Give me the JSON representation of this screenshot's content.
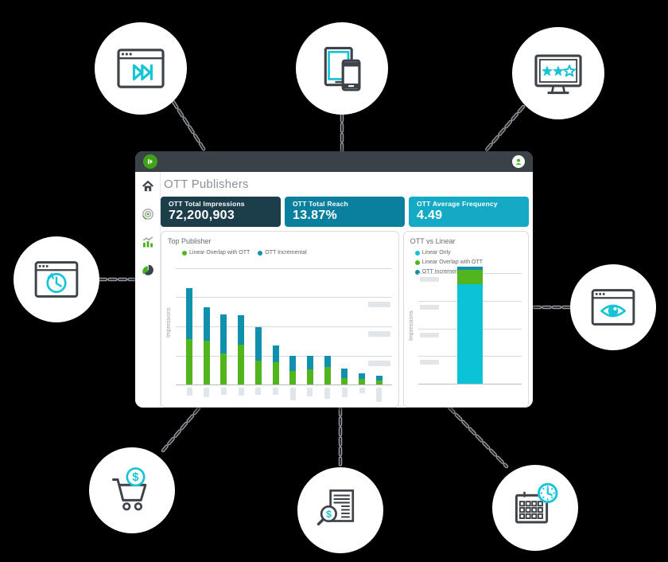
{
  "window": {
    "page_title": "OTT Publishers",
    "titlebar": {
      "logo_icon": "play-logo-icon",
      "avatar_icon": "user-avatar-icon"
    },
    "sidebar_icons": [
      {
        "name": "home-icon"
      },
      {
        "name": "target-rings-icon"
      },
      {
        "name": "bar-trend-icon"
      },
      {
        "name": "pie-chart-icon"
      }
    ],
    "kpis": [
      {
        "label": "OTT Total Impressions",
        "value": "72,200,903",
        "bg": "#1c3e4a"
      },
      {
        "label": "OTT Total Reach",
        "value": "13.87%",
        "bg": "#0b7f9e"
      },
      {
        "label": "OTT Average Frequency",
        "value": "4.49",
        "bg": "#14aac5"
      }
    ]
  },
  "chart_data": [
    {
      "type": "bar",
      "subtype": "stacked-vertical",
      "title": "Top Publisher",
      "ylabel": "Impressions",
      "legend_position": "top",
      "grid": true,
      "ylim": [
        0,
        4.3
      ],
      "gridlines": [
        1,
        2,
        3,
        4
      ],
      "categories_redacted": true,
      "categories": [
        "",
        "",
        "",
        "",
        "",
        "",
        "",
        "",
        "",
        "",
        "",
        ""
      ],
      "series": [
        {
          "name": "Linear Overlap with OTT",
          "color": "#53b51e",
          "values": [
            1.56,
            1.5,
            1.07,
            1.36,
            0.82,
            0.77,
            0.46,
            0.52,
            0.61,
            0.23,
            0.18,
            0.14
          ]
        },
        {
          "name": "OTT Incremental",
          "color": "#0f90ad",
          "values": [
            1.76,
            1.15,
            1.35,
            1.01,
            1.15,
            0.57,
            0.54,
            0.48,
            0.39,
            0.32,
            0.21,
            0.16
          ]
        }
      ],
      "redacted_x_label_heights": [
        10,
        12,
        9,
        10,
        9,
        9,
        16,
        11,
        14,
        12,
        7,
        18
      ],
      "redacted_right_axis_values": [
        1,
        2,
        3
      ]
    },
    {
      "type": "bar",
      "subtype": "stacked-vertical",
      "title": "OTT vs Linear",
      "ylabel": "Impressions",
      "legend_position": "top",
      "grid": true,
      "ylim": [
        0,
        4.27
      ],
      "gridlines": [
        1,
        2,
        3,
        4
      ],
      "categories": [
        ""
      ],
      "series": [
        {
          "name": "Linear Only",
          "color": "#0ac4d6",
          "values": [
            3.61
          ]
        },
        {
          "name": "Linear Overlap with OTT",
          "color": "#53b51e",
          "values": [
            0.53
          ]
        },
        {
          "name": "OTT Incremental",
          "color": "#0f90ad",
          "values": [
            0.11
          ]
        }
      ],
      "redacted_left_axis_values": [
        1,
        2,
        3,
        4
      ]
    }
  ],
  "satellites": [
    {
      "name": "browser-skip-ads-icon"
    },
    {
      "name": "tablet-phone-devices-icon"
    },
    {
      "name": "monitor-star-ratings-icon"
    },
    {
      "name": "browser-history-clock-icon"
    },
    {
      "name": "browser-eye-viewability-icon"
    },
    {
      "name": "shopping-cart-dollar-icon"
    },
    {
      "name": "document-dollar-search-icon"
    },
    {
      "name": "calendar-clock-icon"
    }
  ],
  "colors": {
    "background": "#000000",
    "titlebar": "#3a4147",
    "brand_green": "#3fa317",
    "chart_green": "#53b51e",
    "chart_teal": "#0f90ad",
    "chart_cyan": "#0ac4d6",
    "icon_dark": "#3d4349",
    "icon_cyan": "#16c4d6",
    "connector_gray": "#959ba0"
  }
}
